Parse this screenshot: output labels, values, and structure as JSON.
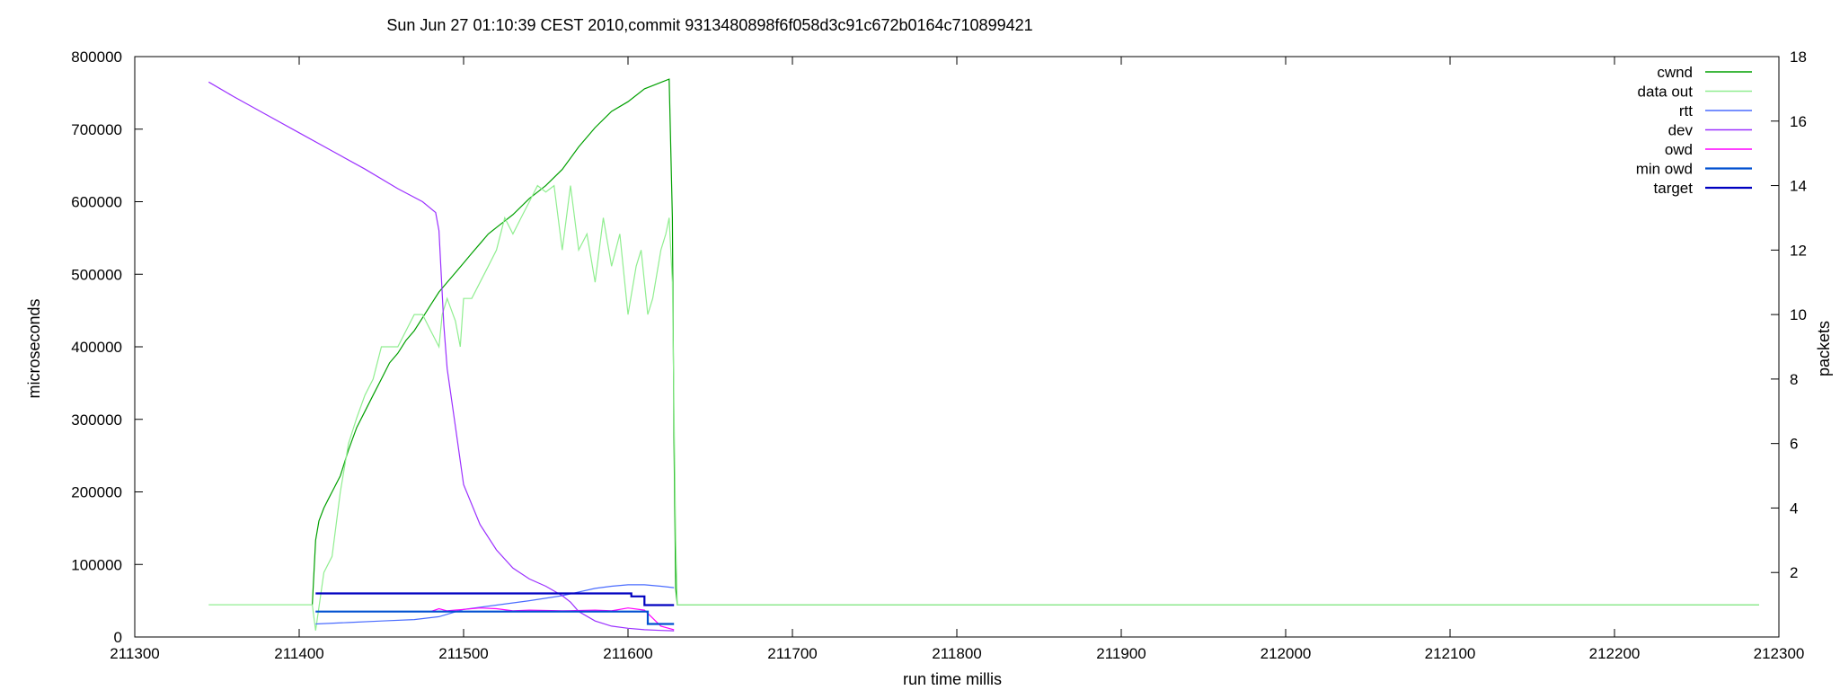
{
  "chart_data": {
    "type": "line",
    "title": "Sun Jun 27 01:10:39 CEST 2010,commit 9313480898f6f058d3c91c672b0164c710899421",
    "xlabel": "run time millis",
    "ylabel": "microseconds",
    "y2label": "packets",
    "xlim": [
      211300,
      212300
    ],
    "ylim": [
      0,
      800000
    ],
    "y2lim": [
      0,
      18
    ],
    "xticks": [
      "211300",
      "211400",
      "211500",
      "211600",
      "211700",
      "211800",
      "211900",
      "212000",
      "212100",
      "212200",
      "212300"
    ],
    "yticks": [
      "0",
      "100000",
      "200000",
      "300000",
      "400000",
      "500000",
      "600000",
      "700000",
      "800000"
    ],
    "y2ticks": [
      "2",
      "4",
      "6",
      "8",
      "10",
      "12",
      "14",
      "16",
      "18"
    ],
    "grid": false,
    "legend_position": "top-right",
    "series": [
      {
        "name": "cwnd",
        "axis": "y2",
        "color": "#00a000",
        "x": [
          211408,
          211410,
          211412,
          211415,
          211418,
          211420,
          211425,
          211430,
          211435,
          211440,
          211445,
          211450,
          211455,
          211460,
          211465,
          211470,
          211475,
          211480,
          211485,
          211490,
          211495,
          211500,
          211505,
          211510,
          211515,
          211520,
          211530,
          211540,
          211550,
          211560,
          211570,
          211580,
          211590,
          211600,
          211610,
          211620,
          211625,
          211627,
          211628,
          211629,
          211630,
          212288
        ],
        "y": [
          1.0,
          3.0,
          3.6,
          4.0,
          4.3,
          4.5,
          5.0,
          5.8,
          6.5,
          7.0,
          7.5,
          8.0,
          8.5,
          8.8,
          9.2,
          9.5,
          9.9,
          10.3,
          10.7,
          11.0,
          11.3,
          11.6,
          11.9,
          12.2,
          12.5,
          12.7,
          13.1,
          13.6,
          14.0,
          14.5,
          15.2,
          15.8,
          16.3,
          16.6,
          17.0,
          17.2,
          17.3,
          13.0,
          6.0,
          1.5,
          1.0,
          1.0
        ]
      },
      {
        "name": "data out",
        "axis": "y2",
        "color": "#90ee90",
        "x": [
          211345,
          211408,
          211410,
          211415,
          211420,
          211425,
          211430,
          211435,
          211440,
          211445,
          211450,
          211455,
          211460,
          211465,
          211470,
          211475,
          211480,
          211485,
          211487,
          211490,
          211495,
          211498,
          211500,
          211505,
          211510,
          211515,
          211520,
          211525,
          211530,
          211535,
          211540,
          211545,
          211550,
          211555,
          211560,
          211565,
          211570,
          211575,
          211580,
          211585,
          211590,
          211595,
          211600,
          211605,
          211608,
          211612,
          211615,
          211620,
          211623,
          211625,
          211627,
          211629,
          211630,
          212288
        ],
        "y": [
          1.0,
          1.0,
          0.2,
          2.0,
          2.5,
          4.5,
          6.0,
          6.8,
          7.5,
          8.0,
          9.0,
          9.0,
          9.0,
          9.5,
          10.0,
          10.0,
          9.5,
          9.0,
          10.0,
          10.5,
          9.8,
          9.0,
          10.5,
          10.5,
          11.0,
          11.5,
          12.0,
          13.0,
          12.5,
          13.0,
          13.5,
          14.0,
          13.8,
          14.0,
          12.0,
          14.0,
          12.0,
          12.5,
          11.0,
          13.0,
          11.5,
          12.5,
          10.0,
          11.5,
          12.0,
          10.0,
          10.5,
          12.0,
          12.5,
          13.0,
          11.0,
          3.0,
          1.0,
          1.0
        ]
      },
      {
        "name": "rtt",
        "axis": "y",
        "color": "#4a6cff",
        "x": [
          211410,
          211430,
          211450,
          211470,
          211485,
          211500,
          211520,
          211540,
          211560,
          211570,
          211580,
          211590,
          211600,
          211610,
          211620,
          211628
        ],
        "y": [
          18000,
          20000,
          22000,
          24000,
          28000,
          38000,
          44000,
          50000,
          57000,
          62000,
          67000,
          70000,
          72000,
          72000,
          70000,
          68000
        ]
      },
      {
        "name": "dev",
        "axis": "y",
        "color": "#9b30ff",
        "x": [
          211345,
          211360,
          211380,
          211400,
          211420,
          211440,
          211460,
          211475,
          211483,
          211485,
          211488,
          211490,
          211495,
          211500,
          211510,
          211520,
          211530,
          211540,
          211550,
          211560,
          211565,
          211570,
          211580,
          211590,
          211600,
          211610,
          211620,
          211628
        ],
        "y": [
          765000,
          745000,
          720000,
          695000,
          670000,
          645000,
          618000,
          600000,
          585000,
          560000,
          430000,
          370000,
          290000,
          210000,
          155000,
          120000,
          95000,
          80000,
          70000,
          57000,
          48000,
          35000,
          22000,
          15000,
          12000,
          10000,
          9000,
          8500
        ]
      },
      {
        "name": "owd",
        "axis": "y",
        "color": "#ff00ff",
        "x": [
          211410,
          211450,
          211480,
          211485,
          211490,
          211500,
          211510,
          211520,
          211530,
          211540,
          211560,
          211580,
          211590,
          211600,
          211610,
          211620,
          211628
        ],
        "y": [
          35000,
          35000,
          35000,
          39000,
          36000,
          38000,
          40000,
          39000,
          36000,
          37000,
          36000,
          37000,
          36000,
          40000,
          37000,
          15000,
          10000
        ]
      },
      {
        "name": "min owd",
        "axis": "y",
        "color": "#0050d0",
        "x": [
          211410,
          211500,
          211610,
          211612,
          211612,
          211628
        ],
        "y": [
          35000,
          35000,
          35000,
          35000,
          18000,
          18000
        ]
      },
      {
        "name": "target",
        "axis": "y",
        "color": "#0000c0",
        "x": [
          211410,
          211500,
          211600,
          211602,
          211602,
          211610,
          211610,
          211612,
          211612,
          211628
        ],
        "y": [
          60000,
          60000,
          60000,
          60000,
          56000,
          56000,
          44000,
          44000,
          44000,
          44000
        ]
      }
    ]
  }
}
